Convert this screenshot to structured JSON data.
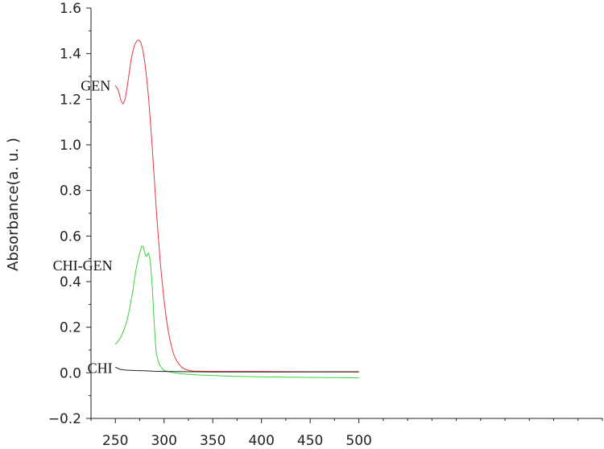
{
  "chart_data": {
    "type": "line",
    "title": "",
    "xlabel": "",
    "ylabel": "Absorbance(a. u. )",
    "xlim": [
      225,
      750
    ],
    "ylim": [
      -0.2,
      1.6
    ],
    "xticks": [
      250,
      300,
      350,
      400,
      450,
      500
    ],
    "yticks": [
      -0.2,
      0.0,
      0.2,
      0.4,
      0.6,
      0.8,
      1.0,
      1.2,
      1.4,
      1.6
    ],
    "ytick_labels": [
      "−0.2",
      "0.0",
      "0.2",
      "0.4",
      "0.6",
      "0.8",
      "1.0",
      "1.2",
      "1.4",
      "1.6"
    ],
    "grid": false,
    "series": [
      {
        "name": "GEN",
        "color": "#e8383d",
        "label_at": [
          250,
          1.26
        ],
        "points": [
          [
            250,
            1.26
          ],
          [
            253,
            1.24
          ],
          [
            256,
            1.19
          ],
          [
            258,
            1.18
          ],
          [
            260,
            1.2
          ],
          [
            262,
            1.25
          ],
          [
            264,
            1.31
          ],
          [
            266,
            1.37
          ],
          [
            268,
            1.41
          ],
          [
            270,
            1.44
          ],
          [
            272,
            1.455
          ],
          [
            274,
            1.46
          ],
          [
            276,
            1.45
          ],
          [
            278,
            1.42
          ],
          [
            280,
            1.37
          ],
          [
            282,
            1.3
          ],
          [
            284,
            1.21
          ],
          [
            286,
            1.1
          ],
          [
            288,
            0.98
          ],
          [
            290,
            0.85
          ],
          [
            292,
            0.72
          ],
          [
            294,
            0.6
          ],
          [
            296,
            0.49
          ],
          [
            298,
            0.4
          ],
          [
            300,
            0.32
          ],
          [
            302,
            0.25
          ],
          [
            304,
            0.19
          ],
          [
            306,
            0.145
          ],
          [
            308,
            0.11
          ],
          [
            310,
            0.08
          ],
          [
            312,
            0.06
          ],
          [
            315,
            0.04
          ],
          [
            318,
            0.025
          ],
          [
            322,
            0.015
          ],
          [
            326,
            0.01
          ],
          [
            330,
            0.008
          ],
          [
            340,
            0.007
          ],
          [
            360,
            0.006
          ],
          [
            400,
            0.006
          ],
          [
            450,
            0.005
          ],
          [
            500,
            0.005
          ]
        ]
      },
      {
        "name": "CHI-GEN",
        "color": "#39d23c",
        "label_at": [
          252,
          0.47
        ],
        "points": [
          [
            250,
            0.125
          ],
          [
            253,
            0.14
          ],
          [
            256,
            0.16
          ],
          [
            259,
            0.19
          ],
          [
            262,
            0.23
          ],
          [
            265,
            0.29
          ],
          [
            268,
            0.36
          ],
          [
            270,
            0.42
          ],
          [
            272,
            0.47
          ],
          [
            274,
            0.51
          ],
          [
            276,
            0.54
          ],
          [
            277,
            0.555
          ],
          [
            278,
            0.556
          ],
          [
            279,
            0.55
          ],
          [
            280,
            0.53
          ],
          [
            281,
            0.515
          ],
          [
            282,
            0.51
          ],
          [
            283,
            0.52
          ],
          [
            284,
            0.525
          ],
          [
            285,
            0.51
          ],
          [
            286,
            0.48
          ],
          [
            287,
            0.43
          ],
          [
            288,
            0.37
          ],
          [
            289,
            0.29
          ],
          [
            290,
            0.21
          ],
          [
            291,
            0.14
          ],
          [
            292,
            0.09
          ],
          [
            294,
            0.05
          ],
          [
            296,
            0.03
          ],
          [
            300,
            0.01
          ],
          [
            305,
            0.005
          ],
          [
            310,
            0.0
          ],
          [
            320,
            -0.005
          ],
          [
            340,
            -0.01
          ],
          [
            370,
            -0.015
          ],
          [
            400,
            -0.018
          ],
          [
            450,
            -0.02
          ],
          [
            500,
            -0.022
          ]
        ]
      },
      {
        "name": "CHI",
        "color": "#222222",
        "label_at": [
          252,
          0.02
        ],
        "points": [
          [
            250,
            0.025
          ],
          [
            255,
            0.015
          ],
          [
            260,
            0.012
          ],
          [
            270,
            0.01
          ],
          [
            280,
            0.009
          ],
          [
            290,
            0.007
          ],
          [
            300,
            0.006
          ],
          [
            320,
            0.005
          ],
          [
            350,
            0.004
          ],
          [
            400,
            0.004
          ],
          [
            450,
            0.004
          ],
          [
            500,
            0.004
          ]
        ]
      }
    ]
  }
}
